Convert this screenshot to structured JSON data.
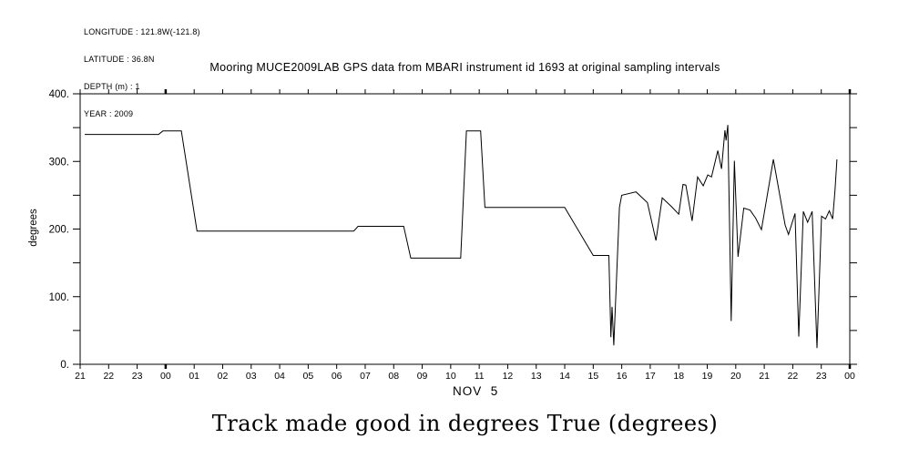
{
  "header_info": {
    "line1": "LONGITUDE : 121.8W(-121.8)",
    "line2": "LATITUDE : 36.8N",
    "line3": "DEPTH (m) : 1",
    "line4": "YEAR : 2009"
  },
  "title": "Mooring MUCE2009LAB GPS data from MBARI instrument id 1693 at original sampling intervals",
  "caption": "Track made good in degrees True (degrees)",
  "chart_data": {
    "type": "line",
    "title": "Mooring MUCE2009LAB GPS data from MBARI instrument id 1693 at original sampling intervals",
    "ylabel": "degrees",
    "date_label": "NOV  5",
    "ylim": [
      0,
      400
    ],
    "y_major_ticks": [
      0,
      100,
      200,
      300,
      400
    ],
    "y_tick_labels": [
      "0.",
      "100.",
      "200.",
      "300.",
      "400."
    ],
    "y_minor_ticks": [
      50,
      150,
      250,
      350
    ],
    "x_tick_labels": [
      "21",
      "22",
      "23",
      "00",
      "01",
      "02",
      "03",
      "04",
      "05",
      "06",
      "07",
      "08",
      "09",
      "10",
      "11",
      "12",
      "13",
      "14",
      "15",
      "16",
      "17",
      "18",
      "19",
      "20",
      "21",
      "22",
      "23",
      "00"
    ],
    "x_hours_span": 27,
    "x_axis_note": "hour of day from Nov 4 21:00 through Nov 6 00:00; bold ticks at midnight (00)",
    "grid": false,
    "legend": null,
    "line_color": "#000000",
    "points": [
      [
        0.16,
        340
      ],
      [
        2.75,
        340
      ],
      [
        2.9,
        345
      ],
      [
        3.55,
        345
      ],
      [
        4.1,
        197
      ],
      [
        9.6,
        197
      ],
      [
        9.75,
        204
      ],
      [
        11.35,
        204
      ],
      [
        11.6,
        157
      ],
      [
        13.35,
        157
      ],
      [
        13.55,
        345
      ],
      [
        14.05,
        345
      ],
      [
        14.2,
        232
      ],
      [
        17.0,
        232
      ],
      [
        18.0,
        161
      ],
      [
        18.55,
        161
      ],
      [
        18.62,
        40
      ],
      [
        18.66,
        85
      ],
      [
        18.72,
        28
      ],
      [
        18.92,
        232
      ],
      [
        19.0,
        250
      ],
      [
        19.5,
        255
      ],
      [
        19.9,
        239
      ],
      [
        20.2,
        183
      ],
      [
        20.42,
        246
      ],
      [
        20.75,
        233
      ],
      [
        21.0,
        222
      ],
      [
        21.15,
        266
      ],
      [
        21.25,
        265
      ],
      [
        21.47,
        212
      ],
      [
        21.66,
        277
      ],
      [
        21.86,
        264
      ],
      [
        22.02,
        280
      ],
      [
        22.15,
        277
      ],
      [
        22.37,
        316
      ],
      [
        22.5,
        289
      ],
      [
        22.62,
        346
      ],
      [
        22.66,
        331
      ],
      [
        22.72,
        354
      ],
      [
        22.84,
        64
      ],
      [
        22.95,
        301
      ],
      [
        23.08,
        159
      ],
      [
        23.28,
        231
      ],
      [
        23.5,
        228
      ],
      [
        23.7,
        216
      ],
      [
        23.9,
        199
      ],
      [
        24.32,
        303
      ],
      [
        24.73,
        206
      ],
      [
        24.85,
        192
      ],
      [
        25.08,
        223
      ],
      [
        25.21,
        41
      ],
      [
        25.37,
        226
      ],
      [
        25.52,
        210
      ],
      [
        25.68,
        226
      ],
      [
        25.85,
        24
      ],
      [
        26.01,
        219
      ],
      [
        26.15,
        215
      ],
      [
        26.28,
        227
      ],
      [
        26.4,
        215
      ],
      [
        26.48,
        256
      ],
      [
        26.55,
        303
      ]
    ]
  }
}
